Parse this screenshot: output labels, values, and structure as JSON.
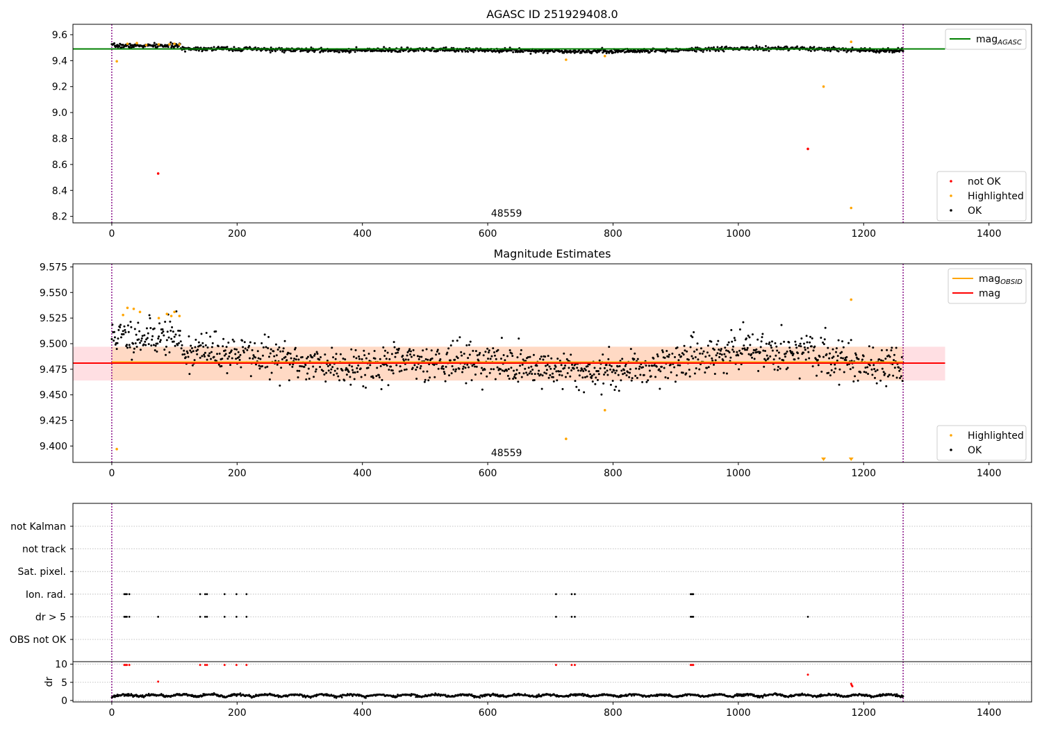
{
  "figure": {
    "title_top": "AGASC ID 251929408.0",
    "title_mid": "Magnitude Estimates",
    "obsid_label": "48559"
  },
  "colors": {
    "ok": "#000000",
    "highlighted": "#ffa500",
    "not_ok": "#ff0000",
    "agasc_line": "#008000",
    "mean_line": "#ff0000",
    "obsid_line": "#ffa500",
    "band_outer": "#ffdfe3",
    "band_inner": "#ffd9c4",
    "obs_boundary": "#800080"
  },
  "chart_data": [
    {
      "id": "top",
      "type": "scatter",
      "title": "AGASC ID 251929408.0",
      "xlim": [
        -62,
        1468
      ],
      "ylim": [
        8.15,
        9.68
      ],
      "xticks": [
        0,
        200,
        400,
        600,
        800,
        1000,
        1200,
        1400
      ],
      "yticks": [
        8.2,
        8.4,
        8.6,
        8.8,
        9.0,
        9.2,
        9.4,
        9.6
      ],
      "obs_boundaries": [
        0,
        1263
      ],
      "obsid_text": "48559",
      "reference_lines": [
        {
          "name": "mag_AGASC",
          "y": 9.49,
          "x_end": 1330,
          "color": "#008000"
        }
      ],
      "legend_lines": [
        {
          "label": "mag",
          "sub": "AGASC",
          "color": "#008000"
        }
      ],
      "legend_points": [
        {
          "label": "not OK",
          "color": "#ff0000"
        },
        {
          "label": "Highlighted",
          "color": "#ffa500"
        },
        {
          "label": "OK",
          "color": "#000000"
        }
      ],
      "ok_series": {
        "x_start": 0,
        "x_end": 1263,
        "count": 1263,
        "baseline": 9.482,
        "early_end": 110,
        "early_level": 9.515,
        "wave_amplitude": 0.012,
        "noise": 0.008
      },
      "highlighted_points": [
        {
          "x": 8,
          "y": 9.395
        },
        {
          "x": 25,
          "y": 9.53
        },
        {
          "x": 40,
          "y": 9.535
        },
        {
          "x": 55,
          "y": 9.52
        },
        {
          "x": 75,
          "y": 9.525
        },
        {
          "x": 92,
          "y": 9.525
        },
        {
          "x": 100,
          "y": 9.53
        },
        {
          "x": 108,
          "y": 9.525
        },
        {
          "x": 725,
          "y": 9.407
        },
        {
          "x": 787,
          "y": 9.435
        },
        {
          "x": 1136,
          "y": 9.2
        },
        {
          "x": 1180,
          "y": 9.545
        },
        {
          "x": 1180,
          "y": 8.265
        }
      ],
      "not_ok_points": [
        {
          "x": 74,
          "y": 8.53
        },
        {
          "x": 1111,
          "y": 8.72
        }
      ]
    },
    {
      "id": "middle",
      "type": "scatter",
      "title": "Magnitude Estimates",
      "xlim": [
        -62,
        1468
      ],
      "ylim": [
        9.384,
        9.578
      ],
      "xticks": [
        0,
        200,
        400,
        600,
        800,
        1000,
        1200,
        1400
      ],
      "yticks": [
        9.4,
        9.425,
        9.45,
        9.475,
        9.5,
        9.525,
        9.55,
        9.575
      ],
      "obs_boundaries": [
        0,
        1263
      ],
      "obsid_text": "48559",
      "band_outer": {
        "x": [
          -62,
          1330
        ],
        "y": [
          9.464,
          9.497
        ]
      },
      "band_inner": {
        "x": [
          0,
          1263
        ],
        "y": [
          9.464,
          9.497
        ]
      },
      "reference_lines": [
        {
          "name": "mag",
          "y": 9.481,
          "x_end": 1330,
          "color": "#ff0000"
        },
        {
          "name": "mag_OBSID",
          "y": 9.482,
          "x_start": 0,
          "x_end": 1263,
          "color": "#ffa500"
        }
      ],
      "legend_lines": [
        {
          "label": "mag",
          "sub": "OBSID",
          "color": "#ffa500"
        },
        {
          "label": "mag",
          "sub": "",
          "color": "#ff0000"
        }
      ],
      "legend_points": [
        {
          "label": "Highlighted",
          "color": "#ffa500"
        },
        {
          "label": "OK",
          "color": "#000000"
        }
      ],
      "ok_series": {
        "x_start": 0,
        "x_end": 1263,
        "count": 1263,
        "baseline": 9.482,
        "early_end": 110,
        "early_level": 9.507,
        "wave_amplitude": 0.012,
        "noise": 0.009
      },
      "highlighted_points": [
        {
          "x": 8,
          "y": 9.397
        },
        {
          "x": 18,
          "y": 9.528
        },
        {
          "x": 25,
          "y": 9.535
        },
        {
          "x": 35,
          "y": 9.534
        },
        {
          "x": 45,
          "y": 9.531
        },
        {
          "x": 75,
          "y": 9.525
        },
        {
          "x": 88,
          "y": 9.529
        },
        {
          "x": 95,
          "y": 9.527
        },
        {
          "x": 100,
          "y": 9.531
        },
        {
          "x": 108,
          "y": 9.527
        },
        {
          "x": 725,
          "y": 9.407
        },
        {
          "x": 787,
          "y": 9.435
        },
        {
          "x": 1180,
          "y": 9.543
        }
      ],
      "offscale_markers": [
        {
          "x": 1136
        },
        {
          "x": 1180
        }
      ]
    },
    {
      "id": "flags",
      "type": "scatter",
      "xlim": [
        -62,
        1468
      ],
      "obs_boundaries": [
        0,
        1263
      ],
      "categories": [
        "not Kalman",
        "not track",
        "Sat. pixel.",
        "Ion. rad.",
        "dr > 5",
        "OBS not OK"
      ],
      "flag_events": {
        "Ion. rad.": [
          20,
          22,
          24,
          28,
          141,
          149,
          152,
          180,
          199,
          215,
          709,
          734,
          739,
          924,
          926,
          928
        ],
        "dr > 5": [
          20,
          22,
          24,
          28,
          74,
          141,
          149,
          152,
          180,
          199,
          215,
          709,
          734,
          739,
          924,
          926,
          928,
          1111
        ]
      }
    },
    {
      "id": "dr",
      "type": "scatter",
      "ylabel": "dr",
      "xlim": [
        -62,
        1468
      ],
      "ylim": [
        -0.4,
        10.7
      ],
      "xticks": [
        0,
        200,
        400,
        600,
        800,
        1000,
        1200,
        1400
      ],
      "yticks": [
        0,
        5,
        10
      ],
      "obs_boundaries": [
        0,
        1263
      ],
      "dr_series": {
        "x_start": 0,
        "x_end": 1263,
        "count": 1263,
        "level": 1.3,
        "amplitude": 1.0
      },
      "high_dr_points": [
        {
          "x": 20,
          "y": 9.8
        },
        {
          "x": 22,
          "y": 9.8
        },
        {
          "x": 24,
          "y": 9.8
        },
        {
          "x": 28,
          "y": 9.8
        },
        {
          "x": 74,
          "y": 5.2
        },
        {
          "x": 141,
          "y": 9.8
        },
        {
          "x": 149,
          "y": 9.8
        },
        {
          "x": 152,
          "y": 9.8
        },
        {
          "x": 180,
          "y": 9.8
        },
        {
          "x": 199,
          "y": 9.8
        },
        {
          "x": 215,
          "y": 9.8
        },
        {
          "x": 709,
          "y": 9.8
        },
        {
          "x": 734,
          "y": 9.8
        },
        {
          "x": 739,
          "y": 9.8
        },
        {
          "x": 924,
          "y": 9.8
        },
        {
          "x": 926,
          "y": 9.8
        },
        {
          "x": 928,
          "y": 9.8
        },
        {
          "x": 1111,
          "y": 7.1
        },
        {
          "x": 1180,
          "y": 4.6
        },
        {
          "x": 1181,
          "y": 4.2
        },
        {
          "x": 1182,
          "y": 3.9
        }
      ]
    }
  ]
}
